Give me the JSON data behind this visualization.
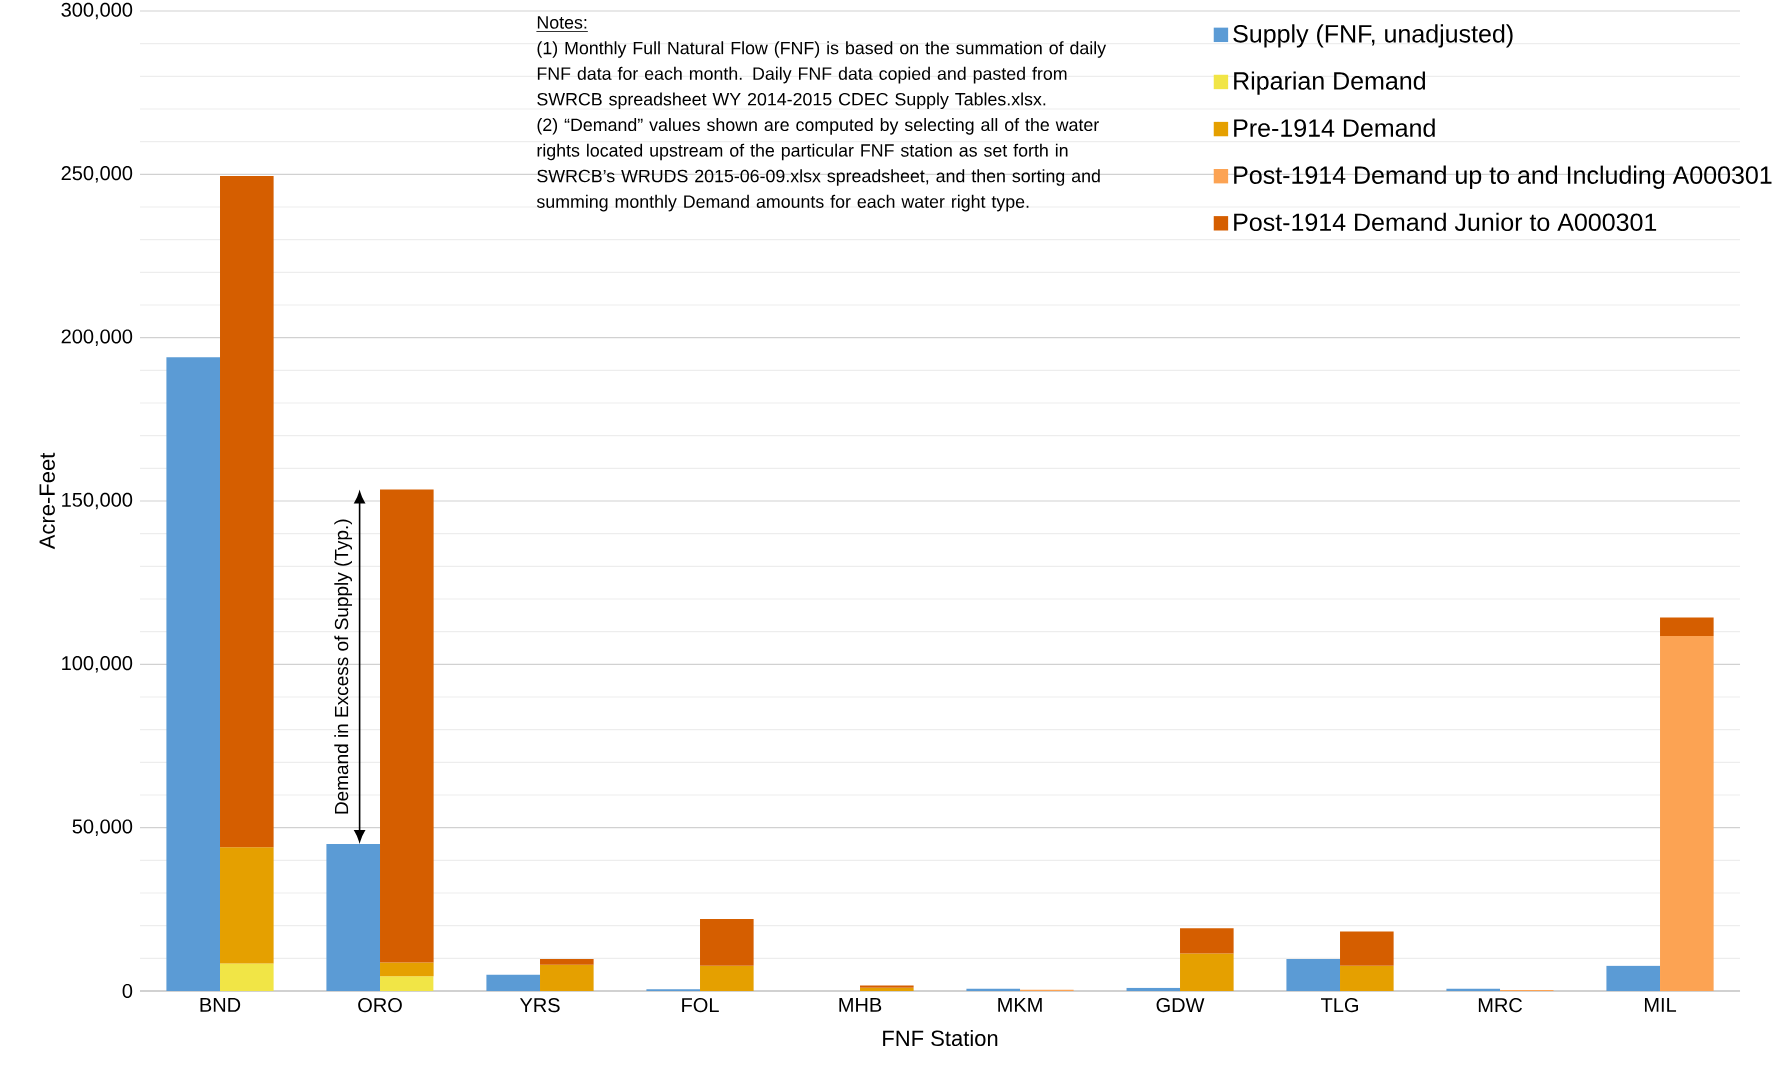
{
  "chart_data": {
    "type": "bar",
    "categories": [
      "BND",
      "ORO",
      "YRS",
      "FOL",
      "MHB",
      "MKM",
      "GDW",
      "TLG",
      "MRC",
      "MIL"
    ],
    "series": [
      {
        "name": "Supply (FNF, unadjusted)",
        "color": "#5b9bd5",
        "values": [
          194000,
          45000,
          5000,
          500,
          null,
          700,
          1000,
          9800,
          700,
          7700
        ]
      },
      {
        "name": "Riparian Demand",
        "color": "#f1e546",
        "values": [
          8400,
          4500,
          null,
          null,
          null,
          null,
          null,
          null,
          null,
          null
        ],
        "base": [
          0,
          0,
          null,
          null,
          null,
          null,
          null,
          null,
          null,
          null
        ]
      },
      {
        "name": "Pre-1914 Demand",
        "color": "#e5a000",
        "values": [
          35600,
          4200,
          8000,
          7700,
          1000,
          null,
          11500,
          7700,
          null,
          null
        ],
        "base": [
          8400,
          4500,
          0,
          0,
          0,
          null,
          0,
          0,
          null,
          null
        ]
      },
      {
        "name": "Post-1914 Demand up to and Including A000301",
        "color": "#fca353",
        "values": [
          null,
          null,
          null,
          null,
          null,
          400,
          null,
          null,
          300,
          108700
        ],
        "base": [
          null,
          null,
          null,
          null,
          null,
          0,
          null,
          null,
          0,
          0
        ]
      },
      {
        "name": "Post-1914 Demand Junior to A000301",
        "color": "#d55e00",
        "values": [
          205500,
          144800,
          1800,
          14300,
          700,
          null,
          7700,
          10500,
          null,
          5600
        ],
        "base": [
          44000,
          8700,
          8000,
          7700,
          1000,
          null,
          11500,
          7700,
          null,
          108700
        ]
      }
    ],
    "xlabel": "FNF Station",
    "ylabel": "Acre-Feet",
    "ylim": [
      0,
      300000
    ],
    "yticks": [
      {
        "value": 0,
        "label": "0"
      },
      {
        "value": 50000,
        "label": "50,000"
      },
      {
        "value": 100000,
        "label": "100,000"
      },
      {
        "value": 150000,
        "label": "150,000"
      },
      {
        "value": 200000,
        "label": "200,000"
      },
      {
        "value": 250000,
        "label": "250,000"
      },
      {
        "value": 300000,
        "label": "300,000"
      }
    ],
    "grid": "y",
    "legend": "top right",
    "annotations": [
      {
        "text": "Demand in Excess of Supply (Typ.)",
        "x": "ORO",
        "y": 45000
      },
      "Notes:",
      "(1) Monthly Full Natural Flow (FNF) is based on the summation of daily FNF data for each month. Daily FNF data copied and pasted from SWRCB spreadsheet WY 2014-2015 CDEC Supply Tables.xlsx.",
      "(2) “Demand” values shown are computed by selecting all of the water rights located upstream of the particular FNF station as set forth in SWRCB’s WRUDS 2015-06-09.xlsx spreadsheet, and then sorting and summing monthly Demand amounts for each water right type."
    ]
  }
}
